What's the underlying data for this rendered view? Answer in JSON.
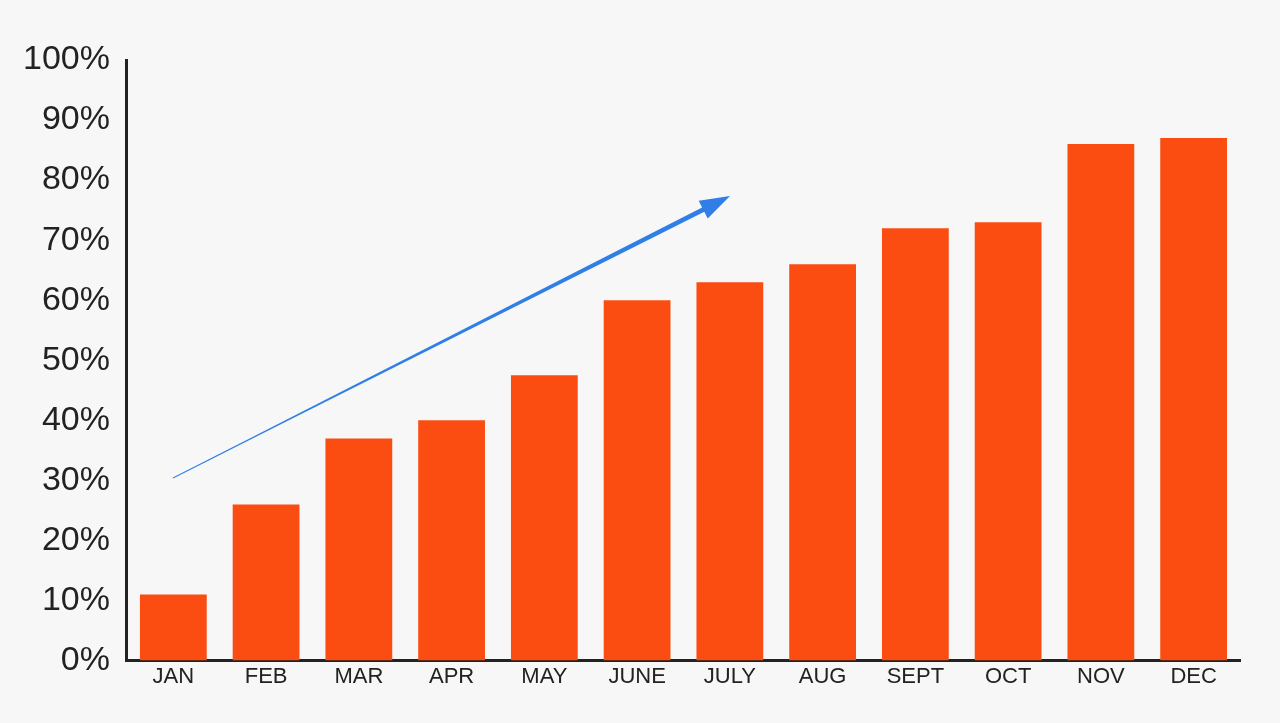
{
  "chart_data": {
    "type": "bar",
    "categories": [
      "JAN",
      "FEB",
      "MAR",
      "APR",
      "MAY",
      "JUNE",
      "JULY",
      "AUG",
      "SEPT",
      "OCT",
      "NOV",
      "DEC"
    ],
    "values": [
      11,
      26,
      37,
      40,
      47.5,
      60,
      63,
      66,
      72,
      73,
      86,
      87
    ],
    "color": "#fb4d12",
    "ylim": [
      0,
      100
    ],
    "yticks": [
      {
        "value": 0,
        "label": "0%"
      },
      {
        "value": 10,
        "label": "10%"
      },
      {
        "value": 20,
        "label": "20%"
      },
      {
        "value": 30,
        "label": "30%"
      },
      {
        "value": 40,
        "label": "40%"
      },
      {
        "value": 50,
        "label": "50%"
      },
      {
        "value": 60,
        "label": "60%"
      },
      {
        "value": 70,
        "label": "70%"
      },
      {
        "value": 80,
        "label": "80%"
      },
      {
        "value": 90,
        "label": "90%"
      },
      {
        "value": 100,
        "label": "100%"
      }
    ],
    "grid": false,
    "legend": false
  }
}
